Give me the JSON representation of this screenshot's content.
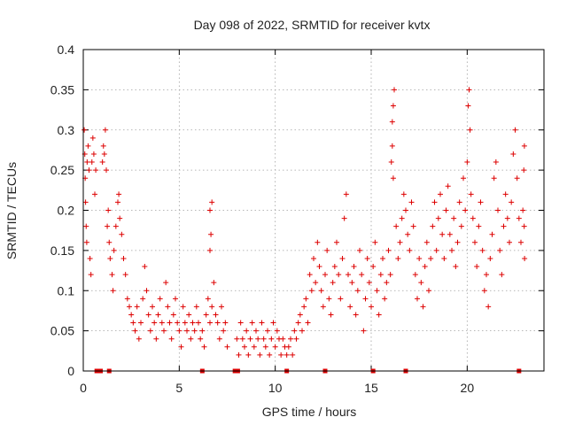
{
  "colors": {
    "series": "#dd0000",
    "grid": "#a0a0a0",
    "axis": "#000000",
    "text": "#222222"
  },
  "chart_data": {
    "type": "scatter",
    "title": "Day 098 of 2022, SRMTID for receiver kvtx",
    "xlabel": "GPS time / hours",
    "ylabel": "SRMTID / TECUs",
    "xlim": [
      0,
      24
    ],
    "ylim": [
      0,
      0.4
    ],
    "x_ticks": [
      0,
      5,
      10,
      15,
      20
    ],
    "x_tick_labels": [
      "0",
      "5",
      "10",
      "15",
      "20"
    ],
    "y_ticks": [
      0,
      0.05,
      0.1,
      0.15,
      0.2,
      0.25,
      0.3,
      0.35,
      0.4
    ],
    "y_tick_labels": [
      "0",
      "0.05",
      "0.1",
      "0.15",
      "0.2",
      "0.25",
      "0.3",
      "0.35",
      "0.4"
    ],
    "grid": true,
    "marker": "plus",
    "series": [
      {
        "name": "SRMTID",
        "points": [
          [
            0.05,
            0.3
          ],
          [
            0.08,
            0.27
          ],
          [
            0.1,
            0.24
          ],
          [
            0.12,
            0.21
          ],
          [
            0.15,
            0.18
          ],
          [
            0.18,
            0.16
          ],
          [
            0.2,
            0.26
          ],
          [
            0.25,
            0.28
          ],
          [
            0.3,
            0.25
          ],
          [
            0.35,
            0.14
          ],
          [
            0.4,
            0.12
          ],
          [
            0.45,
            0.26
          ],
          [
            0.5,
            0.29
          ],
          [
            0.55,
            0.27
          ],
          [
            0.6,
            0.22
          ],
          [
            0.65,
            0.25
          ],
          [
            1.0,
            0.26
          ],
          [
            1.05,
            0.28
          ],
          [
            1.1,
            0.27
          ],
          [
            1.15,
            0.3
          ],
          [
            1.2,
            0.25
          ],
          [
            1.25,
            0.18
          ],
          [
            1.3,
            0.2
          ],
          [
            1.35,
            0.16
          ],
          [
            1.4,
            0.14
          ],
          [
            1.5,
            0.12
          ],
          [
            1.55,
            0.1
          ],
          [
            1.6,
            0.15
          ],
          [
            1.7,
            0.18
          ],
          [
            1.8,
            0.21
          ],
          [
            1.85,
            0.22
          ],
          [
            1.9,
            0.19
          ],
          [
            2.0,
            0.17
          ],
          [
            2.1,
            0.14
          ],
          [
            2.2,
            0.12
          ],
          [
            2.3,
            0.09
          ],
          [
            2.4,
            0.08
          ],
          [
            2.5,
            0.07
          ],
          [
            2.6,
            0.06
          ],
          [
            2.7,
            0.05
          ],
          [
            2.8,
            0.08
          ],
          [
            2.9,
            0.04
          ],
          [
            3.0,
            0.06
          ],
          [
            3.1,
            0.09
          ],
          [
            3.2,
            0.13
          ],
          [
            3.3,
            0.1
          ],
          [
            3.4,
            0.07
          ],
          [
            3.5,
            0.05
          ],
          [
            3.6,
            0.08
          ],
          [
            3.7,
            0.06
          ],
          [
            3.8,
            0.04
          ],
          [
            3.9,
            0.07
          ],
          [
            4.0,
            0.09
          ],
          [
            4.1,
            0.06
          ],
          [
            4.2,
            0.05
          ],
          [
            4.3,
            0.11
          ],
          [
            4.4,
            0.08
          ],
          [
            4.5,
            0.06
          ],
          [
            4.6,
            0.04
          ],
          [
            4.7,
            0.07
          ],
          [
            4.8,
            0.09
          ],
          [
            4.9,
            0.06
          ],
          [
            5.0,
            0.05
          ],
          [
            5.1,
            0.03
          ],
          [
            5.2,
            0.08
          ],
          [
            5.3,
            0.06
          ],
          [
            5.4,
            0.05
          ],
          [
            5.5,
            0.07
          ],
          [
            5.6,
            0.04
          ],
          [
            5.7,
            0.06
          ],
          [
            5.8,
            0.05
          ],
          [
            5.9,
            0.08
          ],
          [
            6.0,
            0.06
          ],
          [
            6.1,
            0.04
          ],
          [
            6.2,
            0.05
          ],
          [
            6.3,
            0.03
          ],
          [
            6.4,
            0.07
          ],
          [
            6.5,
            0.09
          ],
          [
            6.6,
            0.06
          ],
          [
            6.7,
            0.08
          ],
          [
            6.8,
            0.11
          ],
          [
            6.9,
            0.07
          ],
          [
            7.0,
            0.06
          ],
          [
            7.1,
            0.04
          ],
          [
            7.2,
            0.08
          ],
          [
            7.3,
            0.05
          ],
          [
            7.4,
            0.06
          ],
          [
            7.5,
            0.03
          ],
          [
            6.6,
            0.2
          ],
          [
            6.65,
            0.17
          ],
          [
            6.7,
            0.21
          ],
          [
            6.6,
            0.15
          ],
          [
            8.0,
            0.04
          ],
          [
            8.1,
            0.02
          ],
          [
            8.2,
            0.06
          ],
          [
            8.3,
            0.04
          ],
          [
            8.4,
            0.03
          ],
          [
            8.5,
            0.05
          ],
          [
            8.6,
            0.02
          ],
          [
            8.7,
            0.04
          ],
          [
            8.8,
            0.06
          ],
          [
            8.9,
            0.03
          ],
          [
            9.0,
            0.05
          ],
          [
            9.1,
            0.04
          ],
          [
            9.2,
            0.02
          ],
          [
            9.3,
            0.06
          ],
          [
            9.4,
            0.04
          ],
          [
            9.5,
            0.03
          ],
          [
            9.6,
            0.05
          ],
          [
            9.7,
            0.02
          ],
          [
            9.8,
            0.04
          ],
          [
            9.9,
            0.06
          ],
          [
            10.0,
            0.03
          ],
          [
            10.1,
            0.05
          ],
          [
            10.2,
            0.04
          ],
          [
            10.3,
            0.02
          ],
          [
            10.4,
            0.04
          ],
          [
            10.5,
            0.03
          ],
          [
            10.6,
            0.02
          ],
          [
            10.7,
            0.03
          ],
          [
            10.8,
            0.04
          ],
          [
            10.9,
            0.02
          ],
          [
            11.0,
            0.05
          ],
          [
            11.1,
            0.04
          ],
          [
            11.2,
            0.06
          ],
          [
            11.3,
            0.07
          ],
          [
            11.4,
            0.05
          ],
          [
            11.5,
            0.08
          ],
          [
            11.6,
            0.09
          ],
          [
            11.7,
            0.06
          ],
          [
            11.8,
            0.12
          ],
          [
            11.9,
            0.1
          ],
          [
            12.0,
            0.14
          ],
          [
            12.1,
            0.11
          ],
          [
            12.2,
            0.16
          ],
          [
            12.3,
            0.13
          ],
          [
            12.4,
            0.1
          ],
          [
            12.5,
            0.08
          ],
          [
            12.6,
            0.12
          ],
          [
            12.7,
            0.15
          ],
          [
            12.8,
            0.09
          ],
          [
            12.9,
            0.07
          ],
          [
            13.0,
            0.11
          ],
          [
            13.1,
            0.13
          ],
          [
            13.2,
            0.16
          ],
          [
            13.3,
            0.12
          ],
          [
            13.4,
            0.09
          ],
          [
            13.5,
            0.14
          ],
          [
            13.6,
            0.19
          ],
          [
            13.7,
            0.22
          ],
          [
            13.8,
            0.12
          ],
          [
            13.9,
            0.08
          ],
          [
            14.0,
            0.11
          ],
          [
            14.1,
            0.13
          ],
          [
            14.2,
            0.07
          ],
          [
            14.3,
            0.1
          ],
          [
            14.4,
            0.15
          ],
          [
            14.5,
            0.12
          ],
          [
            14.6,
            0.05
          ],
          [
            14.7,
            0.09
          ],
          [
            14.8,
            0.14
          ],
          [
            14.9,
            0.11
          ],
          [
            15.0,
            0.08
          ],
          [
            15.1,
            0.13
          ],
          [
            15.2,
            0.16
          ],
          [
            15.3,
            0.1
          ],
          [
            15.4,
            0.07
          ],
          [
            15.5,
            0.12
          ],
          [
            15.6,
            0.14
          ],
          [
            15.7,
            0.09
          ],
          [
            15.8,
            0.11
          ],
          [
            15.9,
            0.15
          ],
          [
            16.0,
            0.12
          ],
          [
            16.05,
            0.26
          ],
          [
            16.1,
            0.28
          ],
          [
            16.15,
            0.33
          ],
          [
            16.2,
            0.35
          ],
          [
            16.1,
            0.31
          ],
          [
            16.15,
            0.24
          ],
          [
            16.3,
            0.18
          ],
          [
            16.4,
            0.14
          ],
          [
            16.5,
            0.16
          ],
          [
            16.6,
            0.19
          ],
          [
            16.7,
            0.22
          ],
          [
            16.8,
            0.2
          ],
          [
            16.9,
            0.17
          ],
          [
            17.0,
            0.15
          ],
          [
            17.1,
            0.21
          ],
          [
            17.2,
            0.18
          ],
          [
            17.3,
            0.12
          ],
          [
            17.4,
            0.09
          ],
          [
            17.5,
            0.14
          ],
          [
            17.6,
            0.11
          ],
          [
            17.7,
            0.08
          ],
          [
            17.8,
            0.13
          ],
          [
            17.9,
            0.16
          ],
          [
            18.0,
            0.1
          ],
          [
            18.1,
            0.14
          ],
          [
            18.2,
            0.18
          ],
          [
            18.3,
            0.21
          ],
          [
            18.4,
            0.15
          ],
          [
            18.5,
            0.19
          ],
          [
            18.6,
            0.22
          ],
          [
            18.7,
            0.17
          ],
          [
            18.8,
            0.14
          ],
          [
            18.9,
            0.2
          ],
          [
            19.0,
            0.23
          ],
          [
            19.1,
            0.17
          ],
          [
            19.2,
            0.15
          ],
          [
            19.3,
            0.19
          ],
          [
            19.4,
            0.13
          ],
          [
            19.5,
            0.16
          ],
          [
            19.6,
            0.21
          ],
          [
            19.7,
            0.18
          ],
          [
            19.8,
            0.24
          ],
          [
            19.9,
            0.2
          ],
          [
            20.0,
            0.26
          ],
          [
            20.05,
            0.33
          ],
          [
            20.1,
            0.35
          ],
          [
            20.15,
            0.3
          ],
          [
            20.2,
            0.22
          ],
          [
            20.3,
            0.19
          ],
          [
            20.4,
            0.16
          ],
          [
            20.5,
            0.13
          ],
          [
            20.6,
            0.18
          ],
          [
            20.7,
            0.21
          ],
          [
            20.8,
            0.15
          ],
          [
            20.9,
            0.1
          ],
          [
            21.0,
            0.12
          ],
          [
            21.1,
            0.08
          ],
          [
            21.2,
            0.14
          ],
          [
            21.3,
            0.17
          ],
          [
            21.4,
            0.24
          ],
          [
            21.5,
            0.26
          ],
          [
            21.6,
            0.2
          ],
          [
            21.7,
            0.15
          ],
          [
            21.8,
            0.12
          ],
          [
            21.9,
            0.18
          ],
          [
            22.0,
            0.22
          ],
          [
            22.1,
            0.19
          ],
          [
            22.2,
            0.16
          ],
          [
            22.3,
            0.21
          ],
          [
            22.4,
            0.27
          ],
          [
            22.5,
            0.3
          ],
          [
            22.6,
            0.24
          ],
          [
            22.7,
            0.19
          ],
          [
            22.8,
            0.16
          ],
          [
            22.9,
            0.2
          ],
          [
            22.95,
            0.25
          ],
          [
            22.98,
            0.28
          ],
          [
            22.99,
            0.14
          ],
          [
            22.97,
            0.18
          ]
        ]
      }
    ],
    "zero_markers": [
      0.7,
      0.9,
      1.35,
      6.2,
      7.9,
      8.05,
      10.6,
      12.6,
      15.1,
      16.8,
      22.7
    ]
  }
}
